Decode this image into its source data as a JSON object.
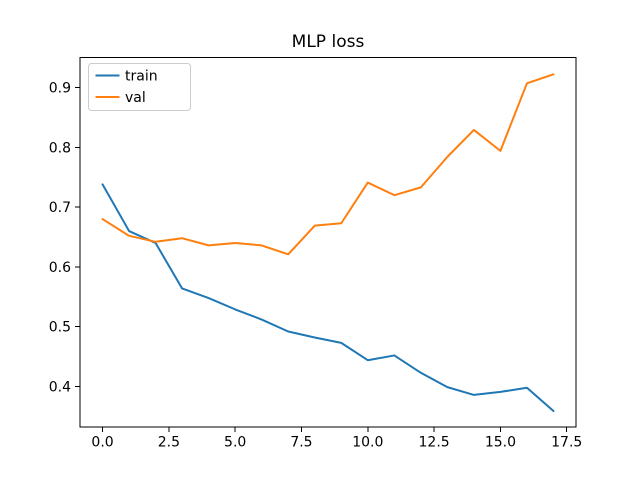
{
  "figure": {
    "background": "#ffffff"
  },
  "chart_data": {
    "type": "line",
    "title": "MLP loss",
    "xlabel": "",
    "ylabel": "",
    "x": [
      0,
      1,
      2,
      3,
      4,
      5,
      6,
      7,
      8,
      9,
      10,
      11,
      12,
      13,
      14,
      15,
      16,
      17
    ],
    "series": [
      {
        "name": "train",
        "color": "#1f77b4",
        "values": [
          0.738,
          0.66,
          0.64,
          0.564,
          0.548,
          0.529,
          0.512,
          0.492,
          0.482,
          0.473,
          0.444,
          0.452,
          0.423,
          0.399,
          0.386,
          0.391,
          0.398,
          0.359
        ]
      },
      {
        "name": "val",
        "color": "#ff7f0e",
        "values": [
          0.68,
          0.652,
          0.642,
          0.648,
          0.636,
          0.64,
          0.636,
          0.621,
          0.669,
          0.673,
          0.741,
          0.72,
          0.733,
          0.784,
          0.829,
          0.794,
          0.907,
          0.922
        ]
      }
    ],
    "xlim": [
      -0.85,
      17.85
    ],
    "ylim": [
      0.332,
      0.95
    ],
    "xticks": [
      0,
      2.5,
      5,
      7.5,
      10,
      12.5,
      15,
      17.5
    ],
    "xtick_labels": [
      "0.0",
      "2.5",
      "5.0",
      "7.5",
      "10.0",
      "12.5",
      "15.0",
      "17.5"
    ],
    "yticks": [
      0.4,
      0.5,
      0.6,
      0.7,
      0.8,
      0.9
    ],
    "ytick_labels": [
      "0.4",
      "0.5",
      "0.6",
      "0.7",
      "0.8",
      "0.9"
    ],
    "grid": false,
    "legend": {
      "position": "upper left",
      "entries": [
        "train",
        "val"
      ]
    },
    "axis_color": "#000000",
    "legend_border_color": "#cccccc",
    "legend_background": "#ffffff"
  }
}
